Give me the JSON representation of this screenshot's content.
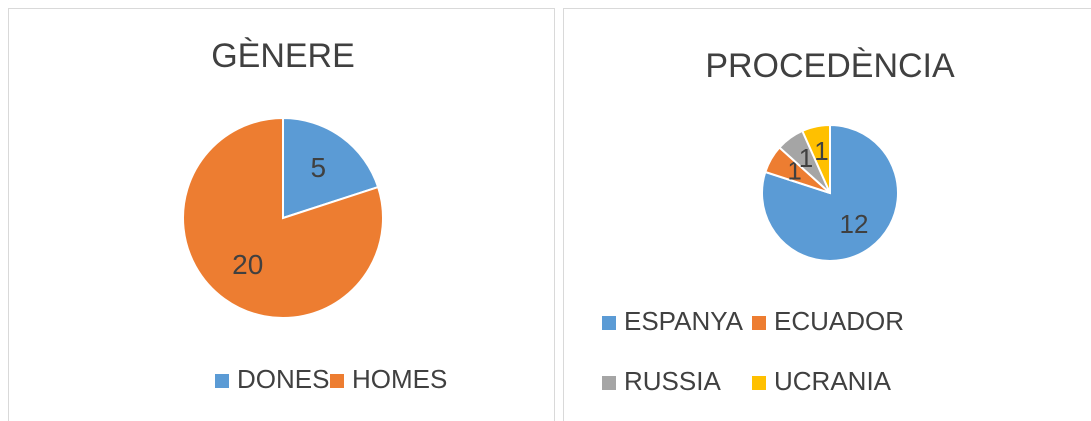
{
  "chart_data": [
    {
      "type": "pie",
      "title": "GÈNERE",
      "categories": [
        "DONES",
        "HOMES"
      ],
      "values": [
        5,
        20
      ],
      "colors": [
        "#5b9bd5",
        "#ed7d31"
      ]
    },
    {
      "type": "pie",
      "title": "PROCEDÈNCIA",
      "categories": [
        "ESPANYA",
        "ECUADOR",
        "RUSSIA",
        "UCRANIA"
      ],
      "values": [
        12,
        1,
        1,
        1
      ],
      "colors": [
        "#5b9bd5",
        "#ed7d31",
        "#a5a5a5",
        "#ffc000"
      ]
    }
  ]
}
